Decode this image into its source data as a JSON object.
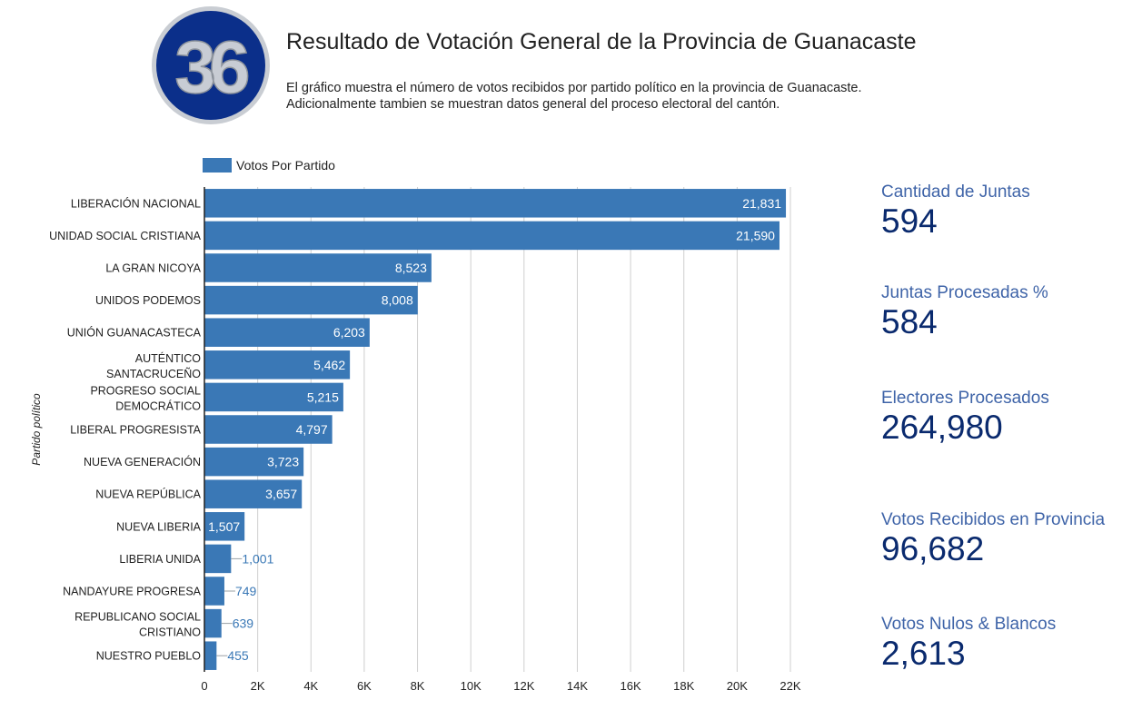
{
  "header": {
    "logo_text": "36",
    "title": "Resultado de Votación General de la Provincia de Guanacaste",
    "description_line1": "El gráfico muestra el número de votos recibidos por partido político en la provincia de Guanacaste.",
    "description_line2": "Adicionalmente tambien se muestran datos general del proceso electoral del cantón."
  },
  "colors": {
    "bar": "#3a78b6",
    "inside_label": "#ffffff",
    "outside_label": "#3a78b6",
    "stat_label": "#3f64a8",
    "stat_value": "#0a2a6e",
    "logo_ring": "#0b2f8a",
    "logo_digits": "#c8ccd4"
  },
  "chart_data": {
    "type": "bar",
    "orientation": "horizontal",
    "legend": "Votos Por Partido",
    "legend_position": "top-left",
    "ylabel": "Partido político",
    "xlim": [
      0,
      22000
    ],
    "x_ticks": [
      "0",
      "2K",
      "4K",
      "6K",
      "8K",
      "10K",
      "12K",
      "14K",
      "16K",
      "18K",
      "20K",
      "22K"
    ],
    "grid": true,
    "categories": [
      [
        "LIBERACIÓN NACIONAL"
      ],
      [
        "UNIDAD SOCIAL CRISTIANA"
      ],
      [
        "LA GRAN NICOYA"
      ],
      [
        "UNIDOS PODEMOS"
      ],
      [
        "UNIÓN GUANACASTECA"
      ],
      [
        "AUTÉNTICO",
        "SANTACRUCEÑO"
      ],
      [
        "PROGRESO SOCIAL",
        "DEMOCRÁTICO"
      ],
      [
        "LIBERAL PROGRESISTA"
      ],
      [
        "NUEVA GENERACIÓN"
      ],
      [
        "NUEVA REPÚBLICA"
      ],
      [
        "NUEVA LIBERIA"
      ],
      [
        "LIBERIA UNIDA"
      ],
      [
        "NANDAYURE PROGRESA"
      ],
      [
        "REPUBLICANO SOCIAL",
        "CRISTIANO"
      ],
      [
        "NUESTRO PUEBLO"
      ]
    ],
    "series": [
      {
        "name": "Votos Por Partido",
        "values": [
          21831,
          21590,
          8523,
          8008,
          6203,
          5462,
          5215,
          4797,
          3723,
          3657,
          1507,
          1001,
          749,
          639,
          455
        ],
        "labels": [
          "21,831",
          "21,590",
          "8,523",
          "8,008",
          "6,203",
          "5,462",
          "5,215",
          "4,797",
          "3,723",
          "3,657",
          "1,507",
          "1,001",
          "749",
          "639",
          "455"
        ]
      }
    ]
  },
  "stats": [
    {
      "label": "Cantidad de Juntas",
      "value": "594"
    },
    {
      "label": "Juntas Procesadas %",
      "value": "584"
    },
    {
      "label": "Electores Procesados",
      "value": "264,980"
    },
    {
      "label": "Votos Recibidos en Provincia",
      "value": "96,682"
    },
    {
      "label": "Votos Nulos & Blancos",
      "value": "2,613"
    }
  ]
}
